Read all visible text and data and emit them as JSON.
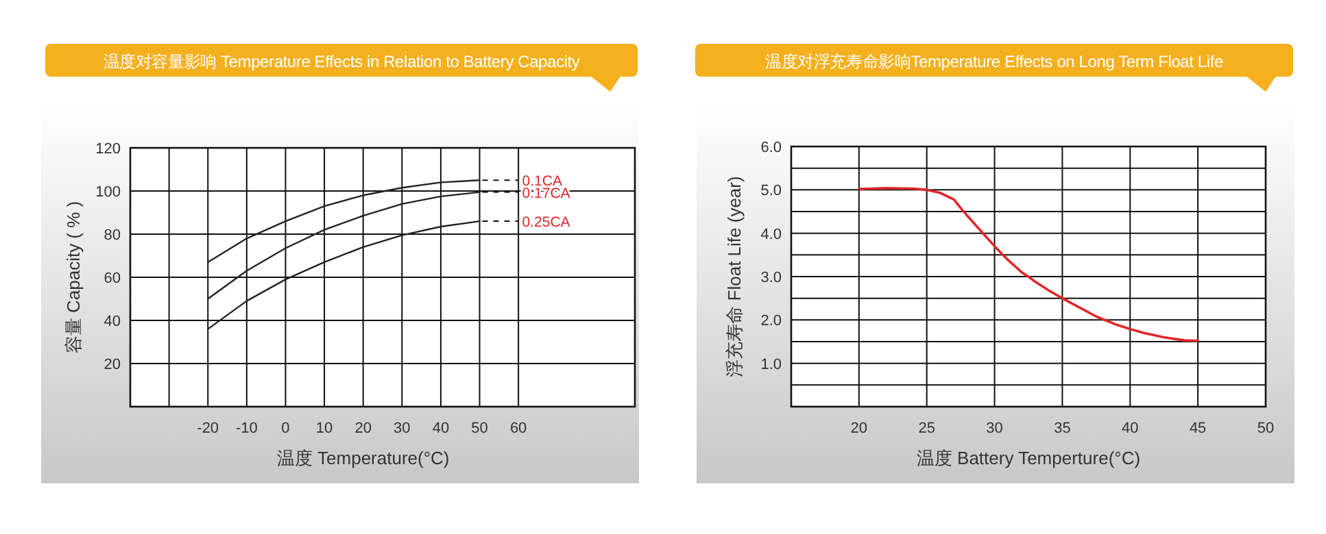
{
  "chart_data": [
    {
      "type": "line",
      "title": "温度对容量影响 Temperature Effects in Relation to Battery Capacity",
      "xlabel": "温度 Temperature(°C)",
      "ylabel": "容量 Capacity ( % )",
      "x": [
        -20,
        -10,
        0,
        10,
        20,
        30,
        40,
        50
      ],
      "series": [
        {
          "name": "0.1CA",
          "color": "#222222",
          "values": [
            67,
            78,
            86,
            93,
            98,
            101.5,
            104,
            105
          ]
        },
        {
          "name": "0.17CA",
          "color": "#222222",
          "values": [
            50,
            63,
            73.5,
            82,
            88.5,
            94,
            97.5,
            99.5
          ]
        },
        {
          "name": "0.25CA",
          "color": "#222222",
          "values": [
            36,
            49,
            59,
            67,
            74,
            79.5,
            83.5,
            86
          ]
        }
      ],
      "xlim": [
        -40,
        90
      ],
      "xticks": [
        {
          "value": -30,
          "label": null
        },
        -20,
        -10,
        0,
        10,
        20,
        30,
        40,
        50,
        60
      ],
      "ylim": [
        0,
        120
      ],
      "yticks": [
        20,
        40,
        60,
        80,
        100,
        120
      ],
      "grid": true
    },
    {
      "type": "line",
      "title": "温度对浮充寿命影响Temperature Effects on Long Term Float Life",
      "xlabel": "温度  Battery  Temperture(°C)",
      "ylabel": "浮充寿命  Float Life (year)",
      "series": [
        {
          "color": "#e0262a",
          "x": [
            20,
            22,
            24,
            25,
            26,
            27,
            27.5,
            28,
            29,
            30,
            31,
            32,
            32.5,
            33,
            34,
            35,
            36,
            37.5,
            39,
            40,
            41,
            42.5,
            44,
            45
          ],
          "values": [
            5.02,
            5.04,
            5.03,
            5.0,
            4.93,
            4.78,
            4.58,
            4.4,
            4.05,
            3.7,
            3.38,
            3.1,
            3.0,
            2.88,
            2.68,
            2.5,
            2.33,
            2.08,
            1.89,
            1.79,
            1.7,
            1.6,
            1.53,
            1.52
          ]
        }
      ],
      "xlim": [
        15,
        50
      ],
      "xticks": [
        20,
        25,
        30,
        35,
        40,
        45,
        50
      ],
      "ylim": [
        0,
        6
      ],
      "yticks": [
        {
          "value": 0.5,
          "label": null
        },
        {
          "value": 1,
          "label": "1.0"
        },
        {
          "value": 1.5,
          "label": null
        },
        {
          "value": 2,
          "label": "2.0"
        },
        {
          "value": 2.5,
          "label": null
        },
        {
          "value": 3,
          "label": "3.0"
        },
        {
          "value": 3.5,
          "label": null
        },
        {
          "value": 4,
          "label": "4.0"
        },
        {
          "value": 4.5,
          "label": null
        },
        {
          "value": 5,
          "label": "5.0"
        },
        {
          "value": 5.5,
          "label": null
        },
        {
          "value": 6,
          "label": "6.0"
        }
      ],
      "grid": true
    }
  ]
}
